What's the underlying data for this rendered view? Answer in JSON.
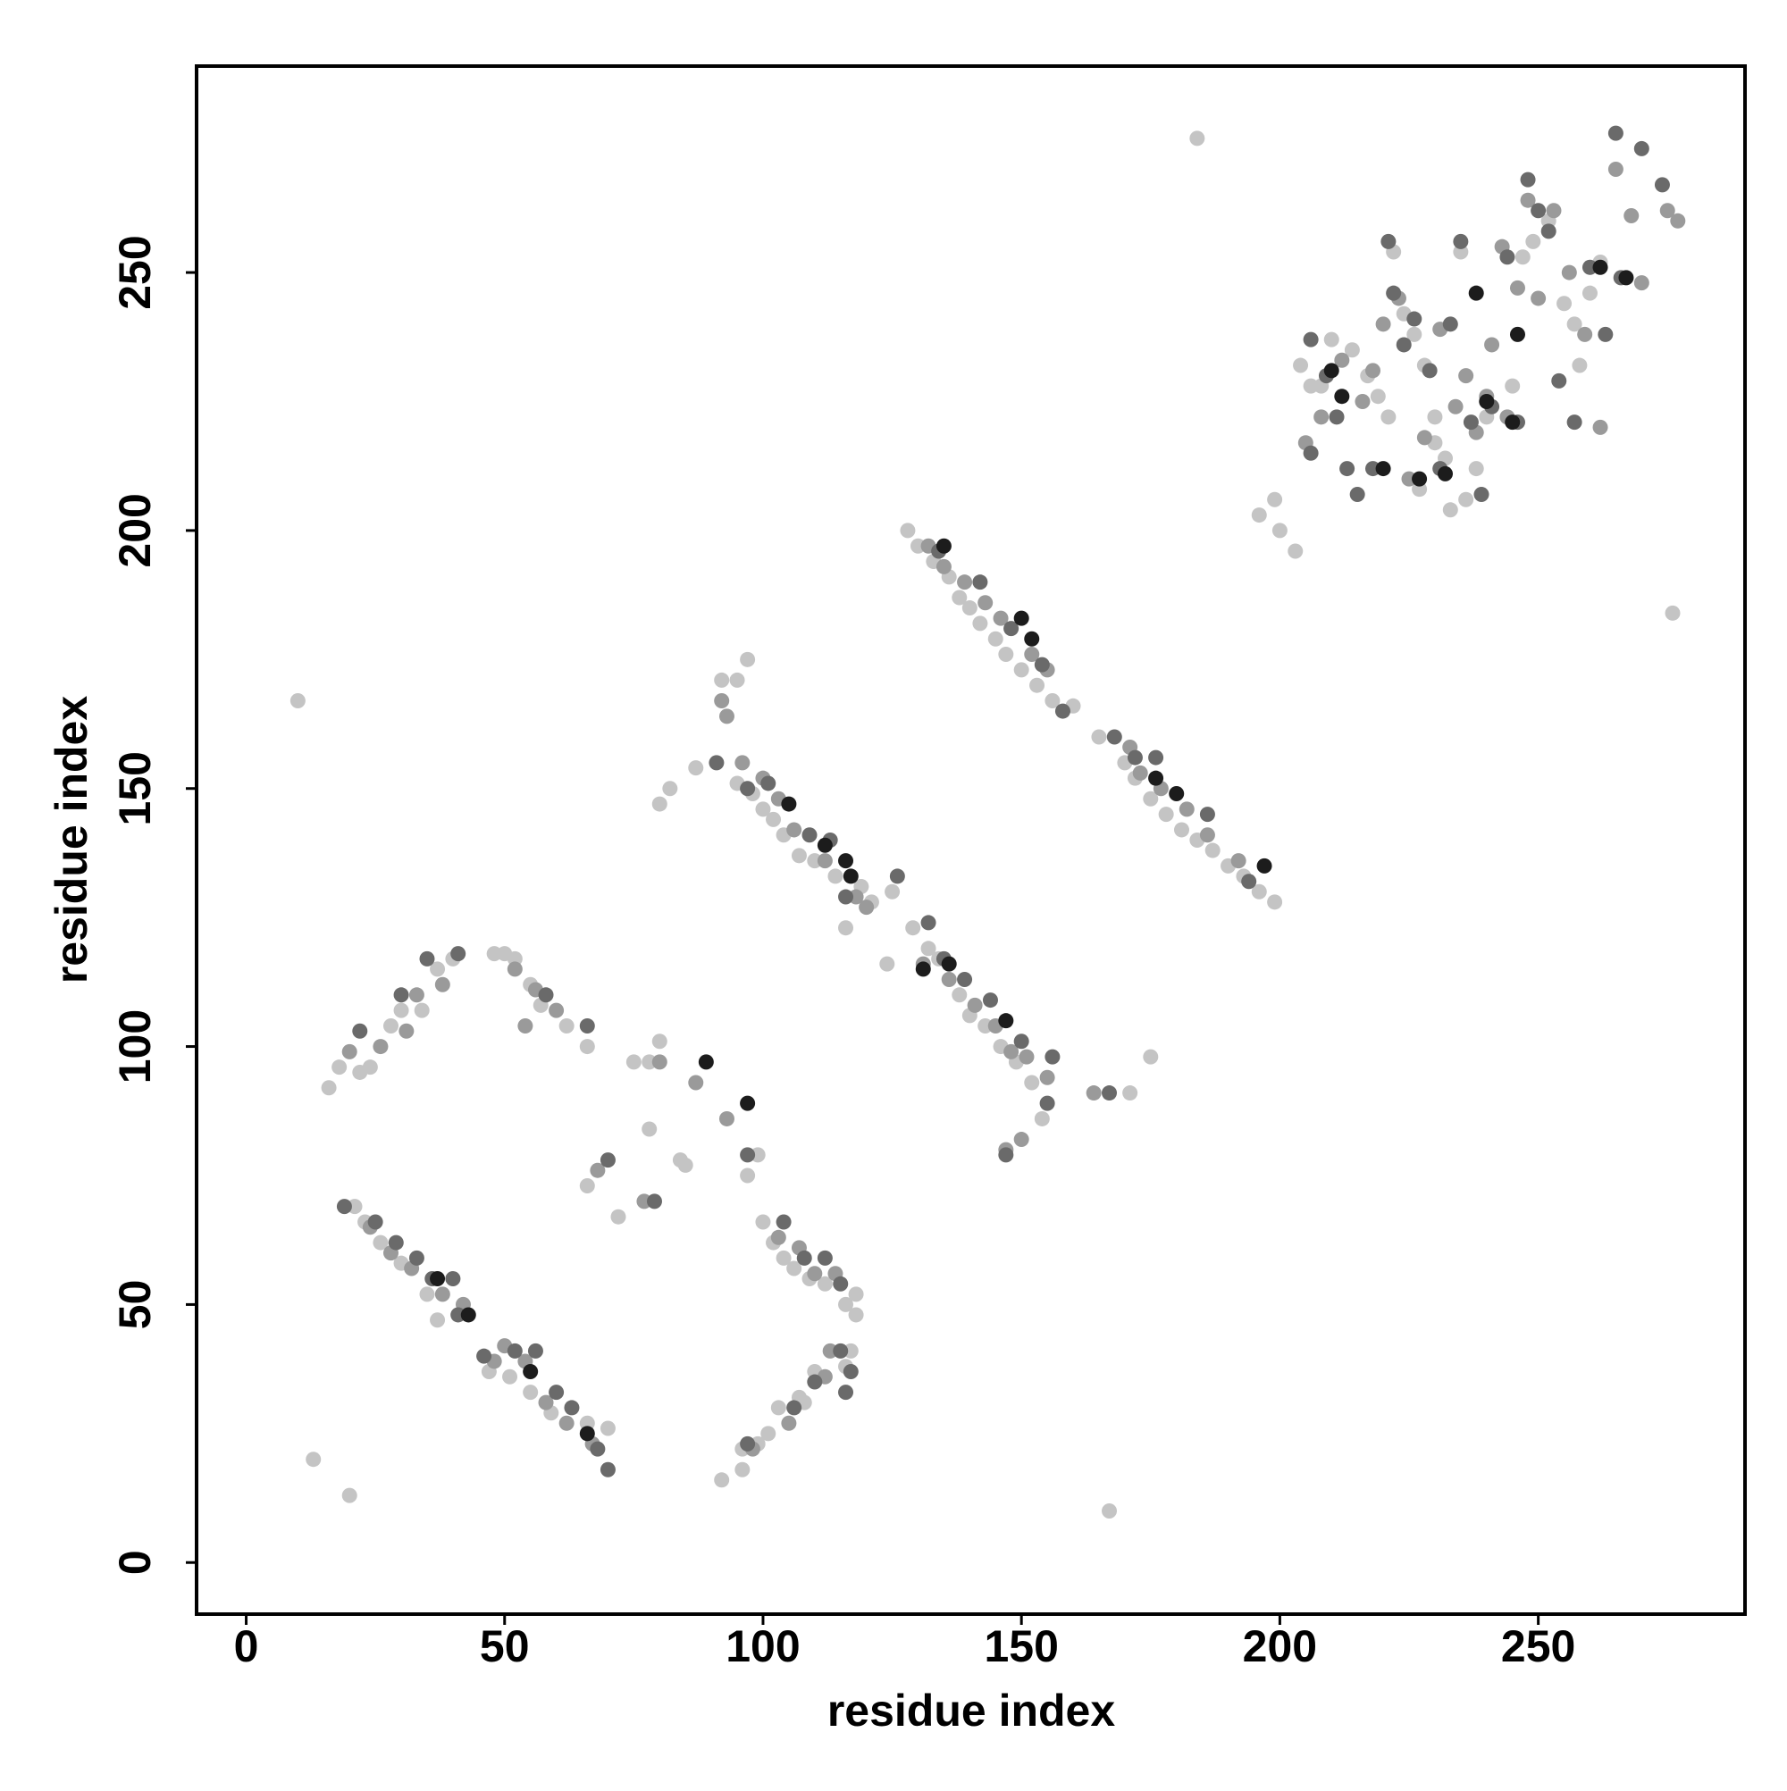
{
  "chart_data": {
    "type": "scatter",
    "xlabel": "residue index",
    "ylabel": "residue index",
    "xlim": [
      -9.6,
      290
    ],
    "ylim": [
      -10,
      290
    ],
    "xticks": [
      0,
      50,
      100,
      150,
      200,
      250
    ],
    "yticks": [
      0,
      50,
      100,
      150,
      200,
      250
    ],
    "series": [
      {
        "color": "#c4c4c4",
        "x": [
          21,
          23,
          26,
          30,
          35,
          37,
          47,
          51,
          55,
          59,
          66,
          70,
          22,
          24,
          16,
          18,
          28,
          30,
          34,
          37,
          40,
          48,
          50,
          52,
          55,
          57,
          62,
          66,
          92,
          96,
          96,
          99,
          101,
          103,
          107,
          108,
          110,
          116,
          117,
          100,
          102,
          104,
          106,
          109,
          112,
          116,
          118,
          118,
          75,
          78,
          80,
          84,
          85,
          72,
          66,
          97,
          99,
          92,
          95,
          97,
          80,
          82,
          87,
          95,
          98,
          100,
          102,
          104,
          107,
          110,
          114,
          116,
          119,
          121,
          124,
          125,
          129,
          132,
          134,
          138,
          140,
          143,
          146,
          149,
          152,
          154,
          78,
          128,
          130,
          133,
          136,
          138,
          140,
          142,
          145,
          147,
          150,
          153,
          156,
          160,
          165,
          170,
          172,
          175,
          178,
          181,
          184,
          187,
          190,
          193,
          196,
          199,
          171,
          175,
          184,
          276,
          10,
          13,
          20,
          167,
          196,
          199,
          200,
          203,
          204,
          206,
          208,
          210,
          214,
          217,
          219,
          221,
          222,
          224,
          226,
          228,
          230,
          232,
          233,
          236,
          238,
          240,
          245,
          247,
          249,
          252,
          255,
          257,
          258,
          260,
          262,
          235,
          230,
          227
        ],
        "values": [
          69,
          66,
          62,
          58,
          52,
          47,
          37,
          36,
          33,
          29,
          27,
          26,
          95,
          96,
          92,
          96,
          104,
          107,
          107,
          115,
          117,
          118,
          118,
          117,
          112,
          108,
          104,
          100,
          16,
          18,
          22,
          23,
          25,
          30,
          32,
          31,
          37,
          38,
          41,
          66,
          62,
          59,
          57,
          55,
          54,
          50,
          52,
          48,
          97,
          84,
          101,
          78,
          77,
          67,
          73,
          75,
          79,
          171,
          171,
          175,
          147,
          150,
          154,
          151,
          149,
          146,
          144,
          141,
          137,
          136,
          133,
          123,
          131,
          128,
          116,
          130,
          123,
          119,
          117,
          110,
          106,
          104,
          100,
          97,
          93,
          86,
          97,
          200,
          197,
          194,
          191,
          187,
          185,
          182,
          179,
          176,
          173,
          170,
          167,
          166,
          160,
          155,
          152,
          148,
          145,
          142,
          140,
          138,
          135,
          133,
          130,
          128,
          91,
          98,
          276,
          184,
          167,
          20,
          13,
          10,
          203,
          206,
          200,
          196,
          232,
          228,
          228,
          237,
          235,
          230,
          226,
          222,
          254,
          242,
          238,
          232,
          217,
          214,
          204,
          206,
          212,
          222,
          228,
          253,
          256,
          260,
          244,
          240,
          232,
          246,
          252,
          254,
          222,
          208
        ]
      },
      {
        "color": "#9a9a9a",
        "x": [
          24,
          28,
          32,
          38,
          42,
          48,
          50,
          54,
          58,
          62,
          67,
          20,
          26,
          31,
          33,
          38,
          52,
          54,
          56,
          60,
          98,
          105,
          112,
          113,
          103,
          107,
          110,
          114,
          80,
          87,
          93,
          77,
          68,
          93,
          92,
          96,
          100,
          103,
          106,
          112,
          118,
          120,
          131,
          136,
          141,
          145,
          148,
          151,
          155,
          147,
          150,
          164,
          132,
          135,
          139,
          143,
          146,
          152,
          155,
          171,
          173,
          177,
          182,
          186,
          192,
          205,
          208,
          212,
          216,
          218,
          220,
          223,
          225,
          228,
          231,
          234,
          236,
          238,
          241,
          243,
          246,
          250,
          253,
          256,
          259,
          262,
          265,
          268,
          270,
          275,
          277,
          240,
          244,
          248
        ],
        "values": [
          65,
          60,
          57,
          52,
          50,
          39,
          42,
          39,
          31,
          27,
          23,
          99,
          100,
          103,
          110,
          112,
          115,
          104,
          111,
          107,
          22,
          27,
          36,
          41,
          63,
          61,
          56,
          56,
          97,
          93,
          86,
          70,
          76,
          164,
          167,
          155,
          152,
          148,
          142,
          136,
          129,
          127,
          116,
          113,
          108,
          104,
          99,
          98,
          94,
          80,
          82,
          91,
          197,
          193,
          190,
          186,
          183,
          176,
          173,
          158,
          153,
          150,
          146,
          141,
          136,
          217,
          222,
          233,
          225,
          231,
          240,
          245,
          210,
          218,
          239,
          224,
          230,
          219,
          236,
          255,
          247,
          245,
          262,
          250,
          238,
          220,
          270,
          261,
          248,
          262,
          260,
          226,
          222,
          264
        ]
      },
      {
        "color": "#6a6a6a",
        "x": [
          19,
          25,
          29,
          33,
          36,
          40,
          41,
          46,
          52,
          56,
          60,
          63,
          68,
          70,
          22,
          30,
          35,
          41,
          58,
          66,
          97,
          106,
          110,
          115,
          116,
          117,
          104,
          108,
          112,
          115,
          70,
          79,
          97,
          91,
          97,
          101,
          109,
          113,
          116,
          126,
          132,
          135,
          139,
          144,
          150,
          156,
          155,
          147,
          167,
          134,
          142,
          148,
          154,
          158,
          168,
          172,
          176,
          186,
          194,
          206,
          206,
          209,
          211,
          213,
          215,
          218,
          221,
          222,
          224,
          226,
          229,
          231,
          233,
          235,
          237,
          239,
          241,
          244,
          246,
          248,
          250,
          252,
          254,
          257,
          260,
          263,
          266,
          270,
          274,
          265
        ],
        "values": [
          69,
          66,
          62,
          59,
          55,
          55,
          48,
          40,
          41,
          41,
          33,
          30,
          22,
          18,
          103,
          110,
          117,
          118,
          110,
          104,
          23,
          30,
          35,
          41,
          33,
          37,
          66,
          59,
          59,
          54,
          78,
          70,
          79,
          155,
          150,
          151,
          141,
          140,
          129,
          133,
          124,
          117,
          113,
          109,
          101,
          98,
          89,
          79,
          91,
          196,
          190,
          181,
          174,
          165,
          160,
          156,
          156,
          145,
          132,
          237,
          215,
          230,
          222,
          212,
          207,
          212,
          256,
          246,
          236,
          241,
          231,
          212,
          240,
          256,
          221,
          207,
          224,
          253,
          221,
          268,
          262,
          258,
          229,
          221,
          251,
          238,
          249,
          274,
          267,
          277
        ]
      },
      {
        "color": "#1c1c1c",
        "x": [
          37,
          43,
          55,
          66,
          89,
          97,
          105,
          112,
          116,
          117,
          131,
          136,
          147,
          135,
          150,
          152,
          176,
          180,
          197,
          210,
          212,
          220,
          227,
          232,
          238,
          246,
          240,
          245,
          262,
          267
        ],
        "values": [
          55,
          48,
          37,
          25,
          97,
          89,
          147,
          139,
          136,
          133,
          115,
          116,
          105,
          197,
          183,
          179,
          152,
          149,
          135,
          231,
          226,
          212,
          210,
          211,
          246,
          238,
          225,
          221,
          251,
          249
        ]
      }
    ]
  }
}
